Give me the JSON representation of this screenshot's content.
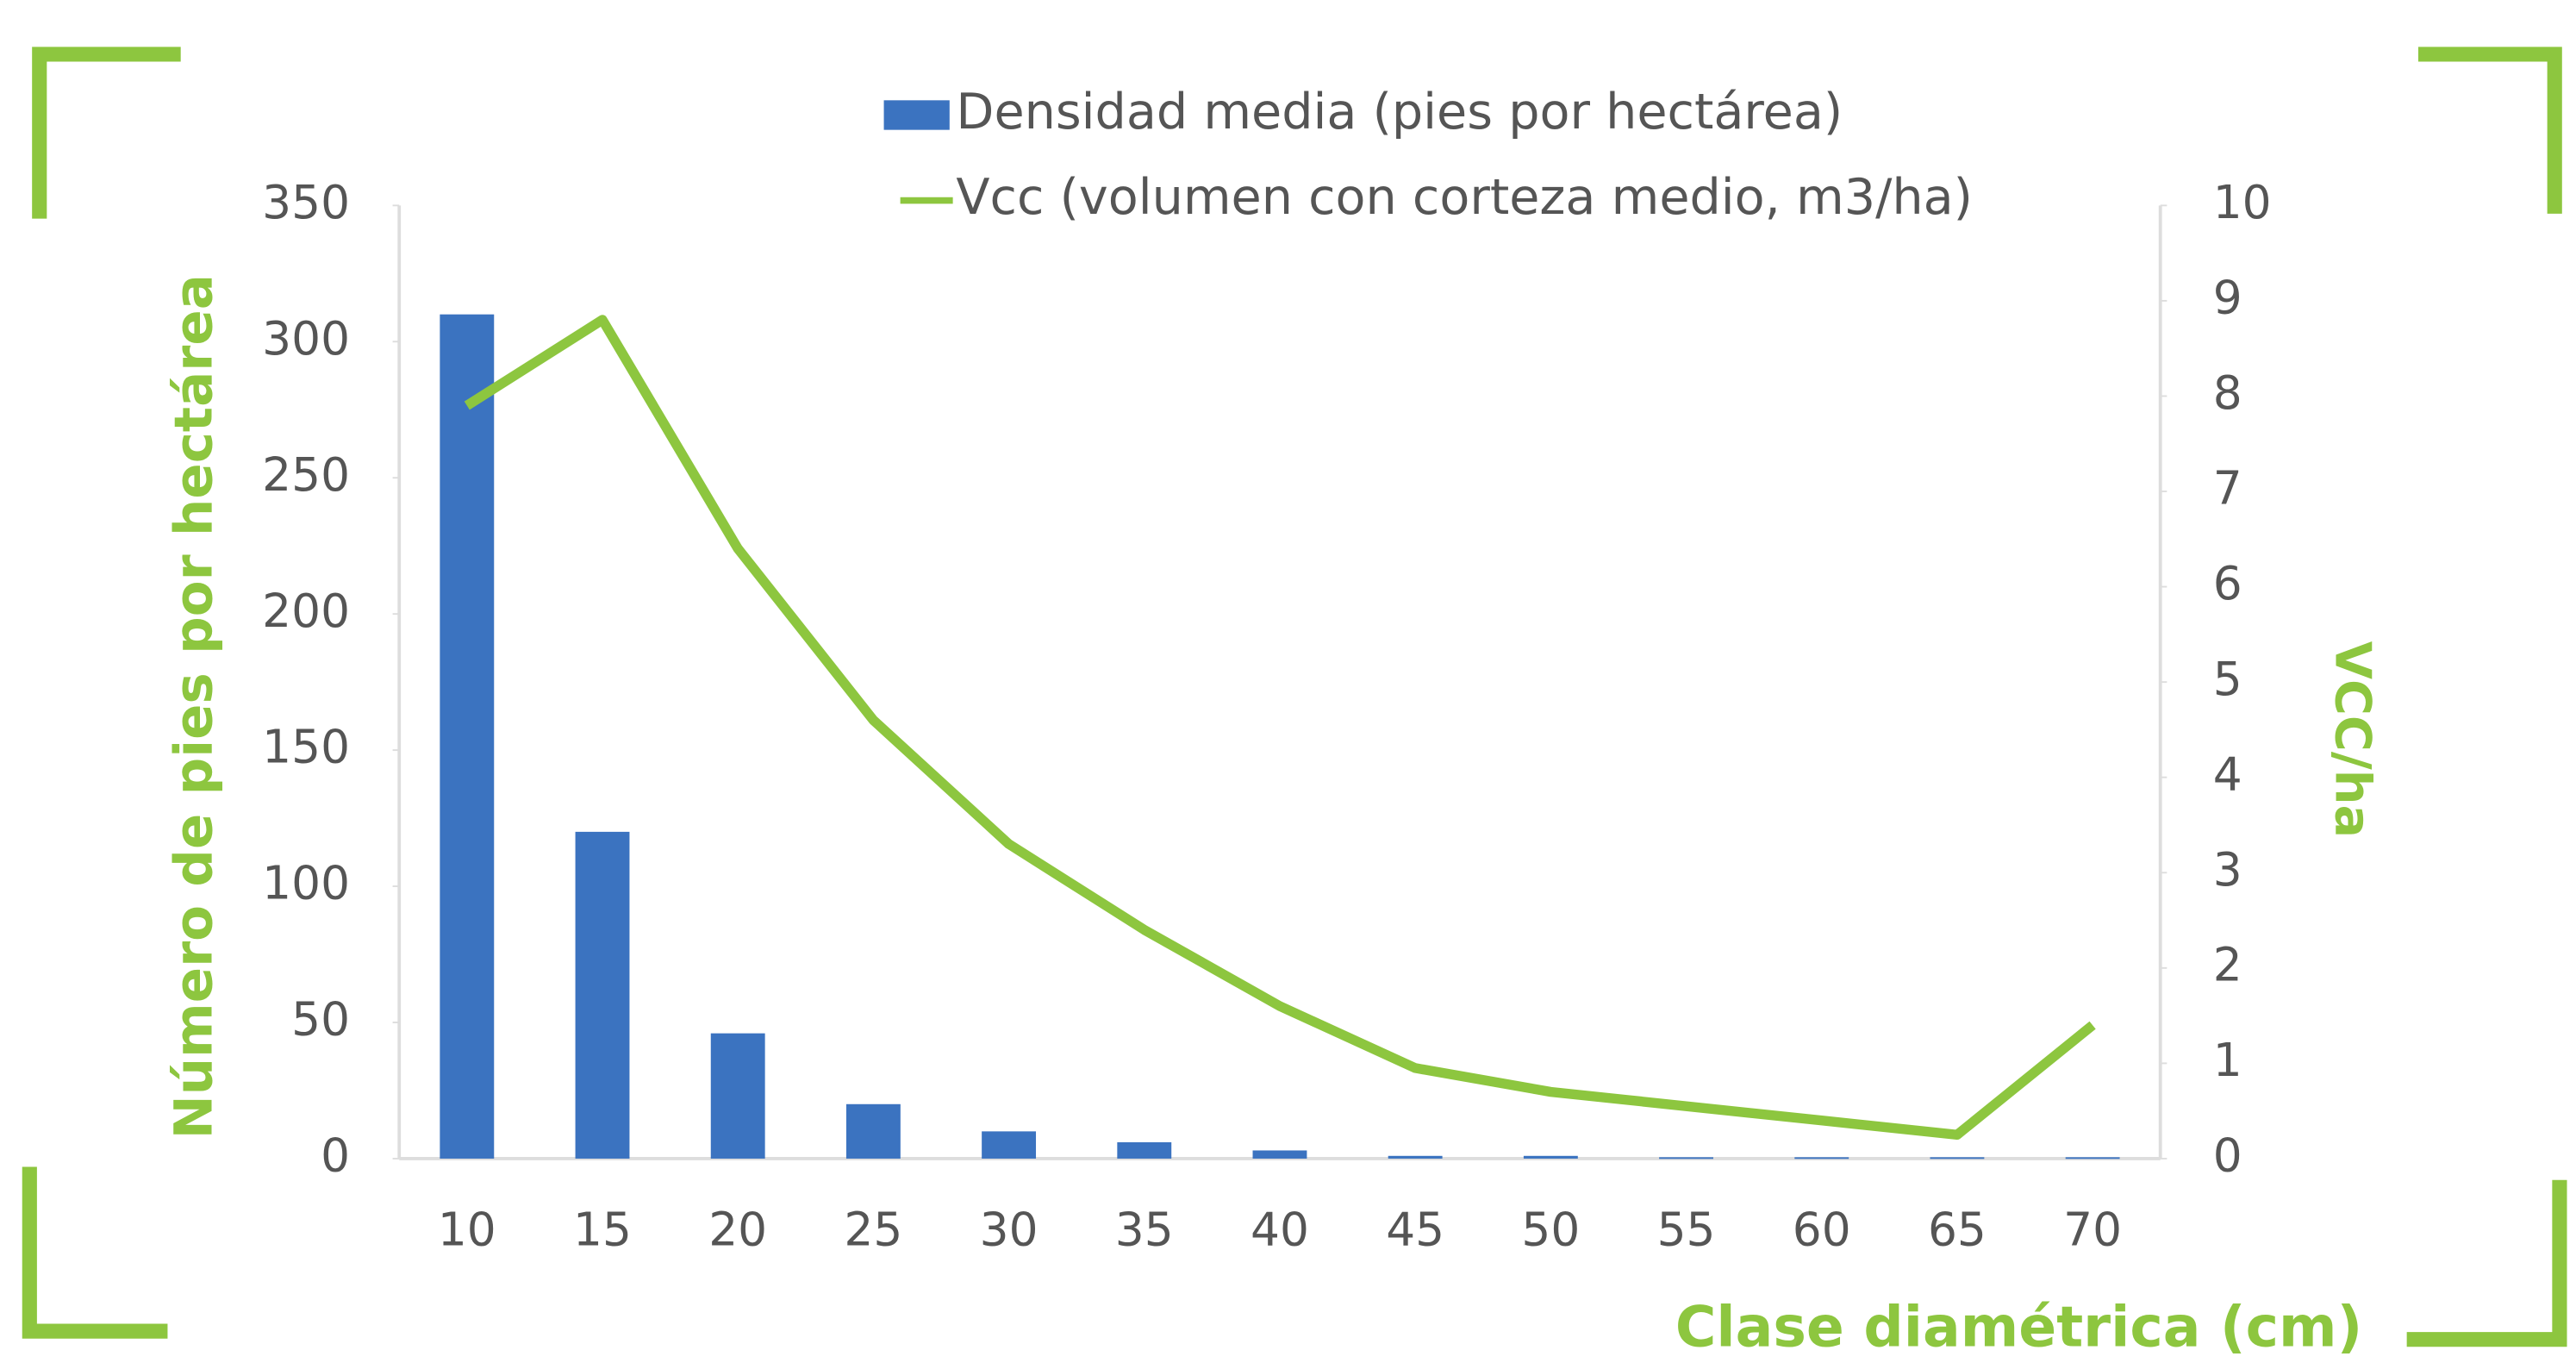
{
  "chart_data": {
    "type": "bar_line",
    "categories": [
      "10",
      "15",
      "20",
      "25",
      "30",
      "35",
      "40",
      "45",
      "50",
      "55",
      "60",
      "65",
      "70"
    ],
    "series": [
      {
        "name": "Densidad media (pies por hectárea)",
        "color": "#3b73c0",
        "type": "bar",
        "values": [
          310,
          120,
          46,
          20,
          10,
          6,
          3,
          1,
          1,
          0.5,
          0.5,
          0.5,
          0.5
        ]
      },
      {
        "name": "Vcc (volumen con corteza medio, m3/ha)",
        "color": "#8dc63f",
        "type": "line",
        "axis": "y2",
        "values": [
          7.9,
          8.8,
          6.4,
          4.6,
          3.3,
          2.4,
          1.6,
          0.95,
          0.7,
          0.55,
          0.4,
          0.25,
          1.4
        ]
      }
    ],
    "y_label": "Número de pies por hectárea",
    "y2_label": "VCC/ha",
    "x_label": "Clase diamétrica (cm)",
    "ylim": [
      0,
      350
    ],
    "yticks": [
      0,
      50,
      100,
      150,
      200,
      250,
      300,
      350
    ],
    "y2lim": [
      0,
      10
    ],
    "y2ticks": [
      0,
      1,
      2,
      3,
      4,
      5,
      6,
      7,
      8,
      9,
      10
    ],
    "legend": "top"
  }
}
